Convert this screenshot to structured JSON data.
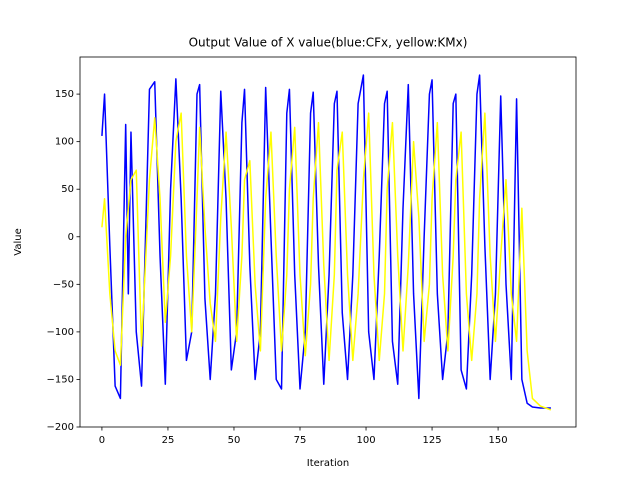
{
  "chart_data": {
    "type": "line",
    "title": "Output Value of X value(blue:CFx, yellow:KMx)",
    "x_label": "Iteration",
    "y_label": "Value",
    "x": [
      0,
      1,
      3,
      5,
      7,
      9,
      10,
      11,
      13,
      15,
      18,
      20,
      22,
      24,
      26,
      28,
      30,
      32,
      34,
      36,
      37,
      39,
      41,
      43,
      45,
      47,
      49,
      51,
      53,
      54,
      56,
      58,
      60,
      62,
      64,
      66,
      68,
      70,
      71,
      73,
      75,
      77,
      79,
      80,
      82,
      84,
      86,
      88,
      89,
      91,
      93,
      95,
      97,
      99,
      101,
      103,
      105,
      107,
      108,
      110,
      112,
      114,
      116,
      118,
      120,
      122,
      124,
      125,
      127,
      129,
      131,
      133,
      134,
      136,
      138,
      140,
      142,
      143,
      145,
      147,
      149,
      151,
      153,
      155,
      157,
      159,
      161,
      163,
      166,
      170
    ],
    "series": [
      {
        "name": "CFx",
        "color": "#0000ff",
        "values": [
          106,
          150,
          -10,
          -157,
          -170,
          118,
          -60,
          110,
          -100,
          -157,
          155,
          163,
          -20,
          -155,
          50,
          166,
          40,
          -130,
          -100,
          150,
          160,
          -65,
          -150,
          -60,
          153,
          40,
          -140,
          -100,
          120,
          155,
          -30,
          -150,
          -100,
          157,
          0,
          -150,
          -160,
          130,
          155,
          -40,
          -160,
          -100,
          130,
          152,
          -30,
          -155,
          -40,
          140,
          153,
          -80,
          -150,
          -40,
          140,
          170,
          -100,
          -150,
          -20,
          140,
          153,
          -110,
          -155,
          30,
          160,
          -60,
          -170,
          0,
          150,
          165,
          -60,
          -150,
          -100,
          140,
          150,
          -140,
          -160,
          -40,
          150,
          170,
          -10,
          -150,
          -60,
          148,
          -50,
          -150,
          145,
          -150,
          -175,
          -179,
          -180,
          -180
        ]
      },
      {
        "name": "KMx",
        "color": "#ffff00",
        "values": [
          10,
          40,
          -60,
          -120,
          -135,
          0,
          30,
          60,
          70,
          -115,
          60,
          125,
          40,
          -90,
          -20,
          100,
          130,
          -20,
          -100,
          40,
          115,
          10,
          -70,
          -110,
          20,
          110,
          10,
          -110,
          -20,
          60,
          80,
          -50,
          -120,
          40,
          110,
          -20,
          -120,
          -40,
          50,
          115,
          -40,
          -125,
          -50,
          40,
          120,
          -30,
          -130,
          -40,
          70,
          110,
          -40,
          -130,
          -60,
          60,
          130,
          -40,
          -130,
          -60,
          50,
          120,
          -20,
          -120,
          -30,
          100,
          20,
          -110,
          -50,
          40,
          120,
          -40,
          -120,
          -20,
          60,
          110,
          -60,
          -130,
          -60,
          40,
          130,
          -20,
          -110,
          -20,
          60,
          -60,
          -110,
          30,
          -120,
          -170,
          -178,
          -182
        ]
      }
    ],
    "xlim": [
      -8.3,
      179.5
    ],
    "ylim": [
      -200,
      189
    ],
    "xticks": [
      0,
      25,
      50,
      75,
      100,
      125,
      150
    ],
    "yticks": [
      {
        "value": -200,
        "label": "−200"
      },
      {
        "value": -150,
        "label": "−150"
      },
      {
        "value": -100,
        "label": "−100"
      },
      {
        "value": -50,
        "label": "−50"
      },
      0,
      50,
      100,
      150
    ]
  }
}
